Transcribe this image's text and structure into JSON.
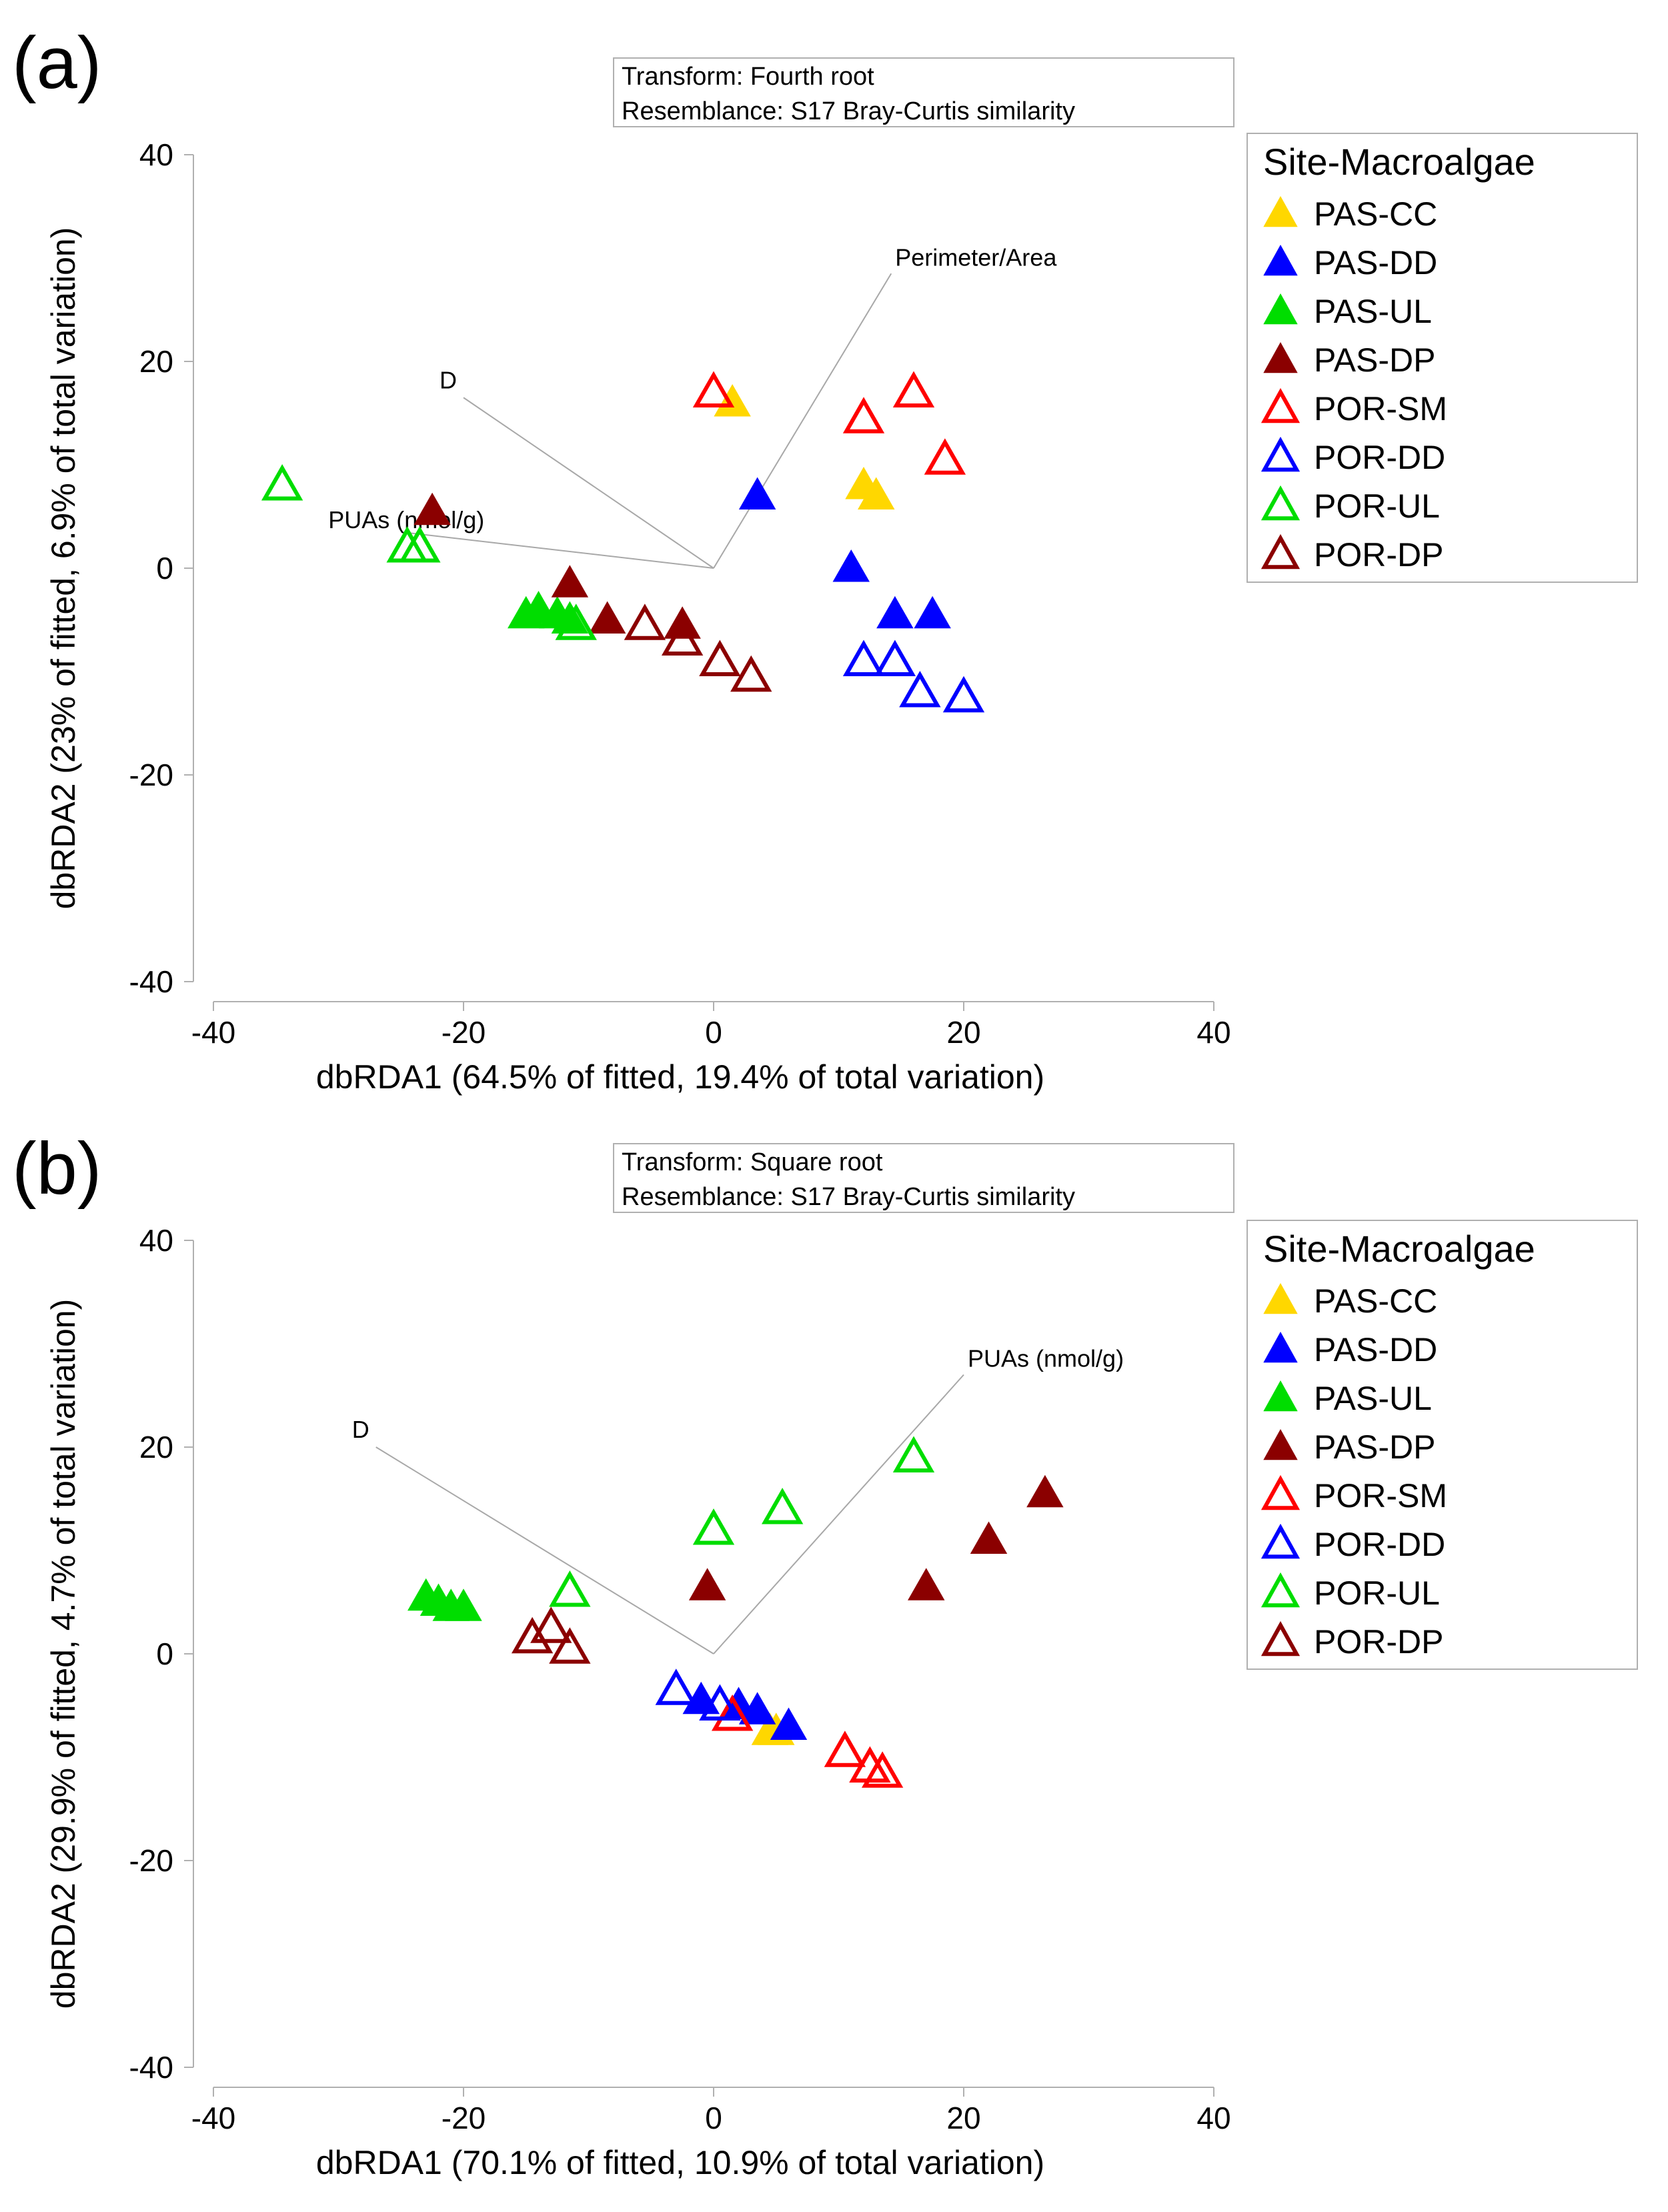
{
  "chart_data": [
    {
      "panel": "(a)",
      "type": "scatter",
      "transform_note": [
        "Transform: Fourth root",
        "Resemblance: S17 Bray-Curtis similarity"
      ],
      "xlabel": "dbRDA1 (64.5% of fitted, 19.4% of total variation)",
      "ylabel": "dbRDA2 (23% of fitted, 6.9% of total variation)",
      "xlim": [
        -40,
        40
      ],
      "ylim": [
        -40,
        40
      ],
      "xticks": [
        "-40",
        "-20",
        "0",
        "20",
        "40"
      ],
      "yticks": [
        "40",
        "20",
        "0",
        "-20",
        "-40"
      ],
      "grid": false,
      "legend_title": "Site-Macroalgae",
      "legend_position": "right",
      "vectors": [
        {
          "label": "Perimeter/Area",
          "end": [
            14.2,
            28.5
          ]
        },
        {
          "label": "D",
          "end": [
            -20,
            16.5
          ]
        },
        {
          "label": "PUAs (nmol/g)",
          "end": [
            -25,
            3.5
          ]
        }
      ],
      "series": [
        {
          "name": "PAS-CC",
          "color": "#ffd700",
          "filled": true,
          "points": [
            [
              1.5,
              16
            ],
            [
              12,
              8
            ],
            [
              13,
              7
            ]
          ]
        },
        {
          "name": "PAS-DD",
          "color": "#0000ff",
          "filled": true,
          "points": [
            [
              3.5,
              7
            ],
            [
              11,
              0
            ],
            [
              14.5,
              -4.5
            ],
            [
              17.5,
              -4.5
            ]
          ]
        },
        {
          "name": "PAS-UL",
          "color": "#00dd00",
          "filled": true,
          "points": [
            [
              -15,
              -4.5
            ],
            [
              -14,
              -4
            ],
            [
              -12.5,
              -4.5
            ],
            [
              -11.5,
              -5
            ]
          ]
        },
        {
          "name": "PAS-DP",
          "color": "#8b0000",
          "filled": true,
          "points": [
            [
              -22.5,
              5.5
            ],
            [
              -11.5,
              -1.5
            ],
            [
              -8.5,
              -5
            ],
            [
              -2.5,
              -5.5
            ]
          ]
        },
        {
          "name": "POR-SM",
          "color": "#ff0000",
          "filled": false,
          "points": [
            [
              0,
              17
            ],
            [
              12,
              14.5
            ],
            [
              16,
              17
            ],
            [
              18.5,
              10.5
            ]
          ]
        },
        {
          "name": "POR-DD",
          "color": "#0000ff",
          "filled": false,
          "points": [
            [
              12,
              -9
            ],
            [
              14.5,
              -9
            ],
            [
              16.5,
              -12
            ],
            [
              20,
              -12.5
            ]
          ]
        },
        {
          "name": "POR-UL",
          "color": "#00dd00",
          "filled": false,
          "points": [
            [
              -34.5,
              8
            ],
            [
              -24.5,
              2
            ],
            [
              -23.5,
              2
            ],
            [
              -11,
              -5.5
            ]
          ]
        },
        {
          "name": "POR-DP",
          "color": "#8b0000",
          "filled": false,
          "points": [
            [
              -5.5,
              -5.5
            ],
            [
              -2.5,
              -7
            ],
            [
              0.5,
              -9
            ],
            [
              3,
              -10.5
            ]
          ]
        }
      ]
    },
    {
      "panel": "(b)",
      "type": "scatter",
      "transform_note": [
        "Transform: Square root",
        "Resemblance: S17 Bray-Curtis similarity"
      ],
      "xlabel": "dbRDA1 (70.1% of fitted, 10.9% of total variation)",
      "ylabel": "dbRDA2 (29.9% of fitted, 4.7% of total variation)",
      "xlim": [
        -40,
        40
      ],
      "ylim": [
        -40,
        40
      ],
      "xticks": [
        "-40",
        "-20",
        "0",
        "20",
        "40"
      ],
      "yticks": [
        "40",
        "20",
        "0",
        "-20",
        "-40"
      ],
      "grid": false,
      "legend_title": "Site-Macroalgae",
      "legend_position": "right",
      "vectors": [
        {
          "label": "PUAs (nmol/g)",
          "end": [
            20,
            27
          ]
        },
        {
          "label": "D",
          "end": [
            -27,
            20
          ]
        }
      ],
      "series": [
        {
          "name": "PAS-CC",
          "color": "#ffd700",
          "filled": true,
          "points": [
            [
              4.5,
              -7.5
            ],
            [
              5,
              -7.5
            ]
          ]
        },
        {
          "name": "PAS-DD",
          "color": "#0000ff",
          "filled": true,
          "points": [
            [
              -1,
              -4.5
            ],
            [
              2,
              -5
            ],
            [
              3.5,
              -5.5
            ],
            [
              6,
              -7
            ]
          ]
        },
        {
          "name": "PAS-UL",
          "color": "#00dd00",
          "filled": true,
          "points": [
            [
              -23,
              5.5
            ],
            [
              -22,
              5
            ],
            [
              -21,
              4.5
            ],
            [
              -20,
              4.5
            ]
          ]
        },
        {
          "name": "PAS-DP",
          "color": "#8b0000",
          "filled": true,
          "points": [
            [
              -0.5,
              6.5
            ],
            [
              17,
              6.5
            ],
            [
              22,
              11
            ],
            [
              26.5,
              15.5
            ]
          ]
        },
        {
          "name": "POR-SM",
          "color": "#ff0000",
          "filled": false,
          "points": [
            [
              1.5,
              -6
            ],
            [
              10.5,
              -9.5
            ],
            [
              12.5,
              -11
            ],
            [
              13.5,
              -11.5
            ]
          ]
        },
        {
          "name": "POR-DD",
          "color": "#0000ff",
          "filled": false,
          "points": [
            [
              -3,
              -3.5
            ],
            [
              0.5,
              -5
            ]
          ]
        },
        {
          "name": "POR-UL",
          "color": "#00dd00",
          "filled": false,
          "points": [
            [
              -11.5,
              6
            ],
            [
              0,
              12
            ],
            [
              5.5,
              14
            ],
            [
              16,
              19
            ]
          ]
        },
        {
          "name": "POR-DP",
          "color": "#8b0000",
          "filled": false,
          "points": [
            [
              -14.5,
              1.5
            ],
            [
              -13,
              2.5
            ],
            [
              -11.5,
              0.5
            ]
          ]
        }
      ]
    }
  ]
}
